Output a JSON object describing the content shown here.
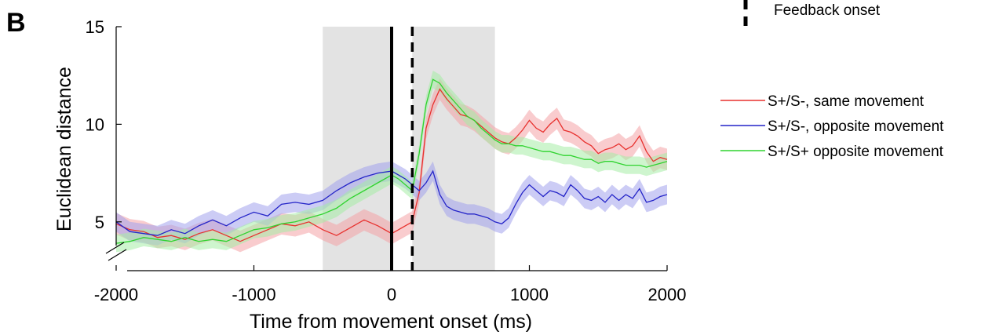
{
  "chart_data": {
    "type": "line",
    "panel_label": "B",
    "xlabel": "Time from movement onset (ms)",
    "ylabel": "Euclidean distance",
    "xlim": [
      -2000,
      2000
    ],
    "ylim": [
      2.5,
      15
    ],
    "xticks": [
      -2000,
      -1000,
      0,
      1000,
      2000
    ],
    "xtick_labels": [
      "-2000",
      "-1000",
      "0",
      "1000",
      "2000"
    ],
    "yticks": [
      5,
      10,
      15
    ],
    "ytick_labels": [
      "5",
      "10",
      "15"
    ],
    "y_axis_break": true,
    "grid": false,
    "shaded_windows": [
      {
        "x0": -500,
        "x1": 0,
        "color": "#e3e3e3"
      },
      {
        "x0": 150,
        "x1": 750,
        "color": "#e3e3e3"
      }
    ],
    "markers": [
      {
        "x": 0,
        "style": "solid",
        "color": "#000000"
      },
      {
        "x": 150,
        "style": "dashed",
        "color": "#000000",
        "legend": "Feedback onset"
      }
    ],
    "series": [
      {
        "name": "S+/S-, same movement",
        "color": "#e8312e",
        "band_color": "#f4a3a5",
        "x": [
          -2000,
          -1900,
          -1800,
          -1700,
          -1600,
          -1500,
          -1400,
          -1300,
          -1200,
          -1100,
          -1000,
          -900,
          -800,
          -700,
          -600,
          -500,
          -400,
          -300,
          -200,
          -100,
          0,
          50,
          100,
          150,
          200,
          250,
          300,
          350,
          400,
          450,
          500,
          550,
          600,
          650,
          700,
          750,
          800,
          850,
          900,
          950,
          1000,
          1050,
          1100,
          1150,
          1200,
          1250,
          1300,
          1350,
          1400,
          1450,
          1500,
          1550,
          1600,
          1650,
          1700,
          1750,
          1800,
          1850,
          1900,
          1950,
          2000
        ],
        "y": [
          4.9,
          4.6,
          4.5,
          4.2,
          4.3,
          4.1,
          4.4,
          4.6,
          4.3,
          4.0,
          4.3,
          4.6,
          4.9,
          4.8,
          5.0,
          4.6,
          4.3,
          4.7,
          5.1,
          4.8,
          4.4,
          4.6,
          4.8,
          5.0,
          6.5,
          9.8,
          11.0,
          11.8,
          11.3,
          10.9,
          10.5,
          10.4,
          10.2,
          9.9,
          9.6,
          9.3,
          9.1,
          9.0,
          9.3,
          9.7,
          10.2,
          9.8,
          9.6,
          10.0,
          10.3,
          9.7,
          9.6,
          9.4,
          9.1,
          8.9,
          8.5,
          8.7,
          8.8,
          9.0,
          8.7,
          8.9,
          9.4,
          8.6,
          8.1,
          8.3,
          8.2
        ],
        "band": 0.55
      },
      {
        "name": "S+/S-, opposite movement",
        "color": "#2424c8",
        "band_color": "#a3a3ec",
        "x": [
          -2000,
          -1900,
          -1800,
          -1700,
          -1600,
          -1500,
          -1400,
          -1300,
          -1200,
          -1100,
          -1000,
          -900,
          -800,
          -700,
          -600,
          -500,
          -400,
          -300,
          -200,
          -100,
          0,
          50,
          100,
          150,
          200,
          250,
          300,
          350,
          400,
          450,
          500,
          550,
          600,
          650,
          700,
          750,
          800,
          850,
          900,
          950,
          1000,
          1050,
          1100,
          1150,
          1200,
          1250,
          1300,
          1350,
          1400,
          1450,
          1500,
          1550,
          1600,
          1650,
          1700,
          1750,
          1800,
          1850,
          1900,
          1950,
          2000
        ],
        "y": [
          5.0,
          4.5,
          4.4,
          4.3,
          4.6,
          4.4,
          4.8,
          5.1,
          4.8,
          5.2,
          5.5,
          5.3,
          5.9,
          6.0,
          5.9,
          6.1,
          6.6,
          7.0,
          7.3,
          7.5,
          7.6,
          7.4,
          7.2,
          6.9,
          6.6,
          7.0,
          7.6,
          6.4,
          5.8,
          5.6,
          5.5,
          5.4,
          5.4,
          5.3,
          5.2,
          5.0,
          4.9,
          5.2,
          5.9,
          6.5,
          6.9,
          6.6,
          6.3,
          6.6,
          6.5,
          6.3,
          6.9,
          6.6,
          6.2,
          6.1,
          6.3,
          6.0,
          6.4,
          6.1,
          6.4,
          6.2,
          6.7,
          6.0,
          6.1,
          6.3,
          6.4
        ],
        "band": 0.5
      },
      {
        "name": "S+/S+ opposite movement",
        "color": "#2fd32f",
        "band_color": "#a5eca5",
        "x": [
          -2000,
          -1900,
          -1800,
          -1700,
          -1600,
          -1500,
          -1400,
          -1300,
          -1200,
          -1100,
          -1000,
          -900,
          -800,
          -700,
          -600,
          -500,
          -400,
          -300,
          -200,
          -100,
          0,
          50,
          100,
          150,
          200,
          250,
          300,
          350,
          400,
          450,
          500,
          550,
          600,
          650,
          700,
          750,
          800,
          850,
          900,
          950,
          1000,
          1050,
          1100,
          1150,
          1200,
          1250,
          1300,
          1350,
          1400,
          1450,
          1500,
          1550,
          1600,
          1650,
          1700,
          1750,
          1800,
          1850,
          1900,
          1950,
          2000
        ],
        "y": [
          3.9,
          4.0,
          4.2,
          4.1,
          4.0,
          4.2,
          4.0,
          4.1,
          4.0,
          4.3,
          4.6,
          4.7,
          4.9,
          5.0,
          5.2,
          5.4,
          5.7,
          6.2,
          6.6,
          7.0,
          7.4,
          7.2,
          6.9,
          6.6,
          8.5,
          11.0,
          12.3,
          12.1,
          11.6,
          11.2,
          10.8,
          10.4,
          10.2,
          9.8,
          9.5,
          9.2,
          9.0,
          9.0,
          8.9,
          8.9,
          8.8,
          8.7,
          8.6,
          8.6,
          8.5,
          8.4,
          8.4,
          8.3,
          8.2,
          8.2,
          8.0,
          8.1,
          8.1,
          8.0,
          7.9,
          7.9,
          7.9,
          7.8,
          7.9,
          8.0,
          8.1
        ],
        "band": 0.45
      }
    ],
    "legend": {
      "placement": "right",
      "feedback_label": "Feedback onset"
    }
  }
}
